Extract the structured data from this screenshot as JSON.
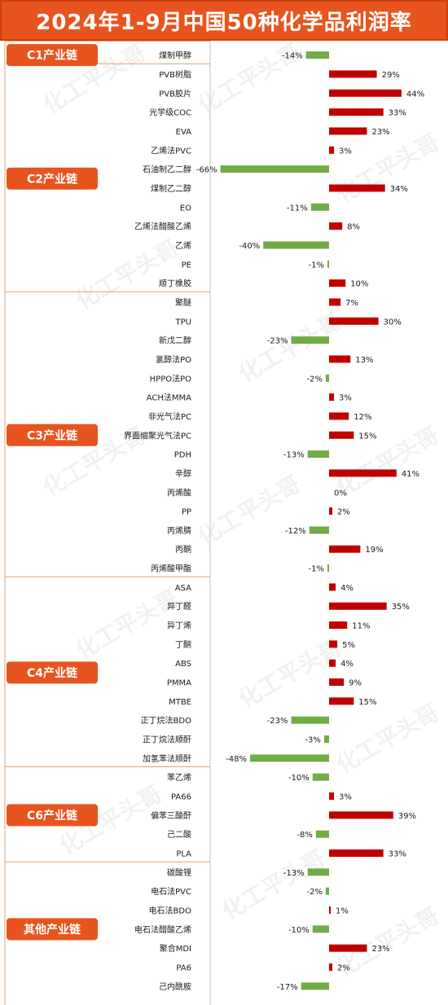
{
  "title": "2024年1-9月中国50种化学品利润率",
  "colors": {
    "header": "#e8541e",
    "positive": "#c00000",
    "negative": "#70ad47",
    "group": "#e8541e",
    "separator": "#e8a070"
  },
  "watermark": "化工平头哥",
  "chart_data": {
    "type": "bar",
    "orientation": "horizontal",
    "title": "2024年1-9月中国50种化学品利润率",
    "value_unit": "%",
    "groups": [
      {
        "name": "C1产业链",
        "items": [
          {
            "label": "煤制甲醇",
            "value": -14
          }
        ]
      },
      {
        "name": "C2产业链",
        "items": [
          {
            "label": "PVB树脂",
            "value": 29
          },
          {
            "label": "PVB胶片",
            "value": 44
          },
          {
            "label": "光学级COC",
            "value": 33
          },
          {
            "label": "EVA",
            "value": 23
          },
          {
            "label": "乙烯法PVC",
            "value": 3
          },
          {
            "label": "石油制乙二醇",
            "value": -66
          },
          {
            "label": "煤制乙二醇",
            "value": 34
          },
          {
            "label": "EO",
            "value": -11
          },
          {
            "label": "乙烯法醋酸乙烯",
            "value": 8
          },
          {
            "label": "乙烯",
            "value": -40
          },
          {
            "label": "PE",
            "value": -1
          },
          {
            "label": "顺丁橡胶",
            "value": 10
          }
        ]
      },
      {
        "name": "C3产业链",
        "items": [
          {
            "label": "聚醚",
            "value": 7
          },
          {
            "label": "TPU",
            "value": 30
          },
          {
            "label": "新戊二醇",
            "value": -23
          },
          {
            "label": "氯醇法PO",
            "value": 13
          },
          {
            "label": "HPPO法PO",
            "value": -2
          },
          {
            "label": "ACH法MMA",
            "value": 3
          },
          {
            "label": "非光气法PC",
            "value": 12
          },
          {
            "label": "界面缩聚光气法PC",
            "value": 15
          },
          {
            "label": "PDH",
            "value": -13
          },
          {
            "label": "辛醇",
            "value": 41
          },
          {
            "label": "丙烯酸",
            "value": 0
          },
          {
            "label": "PP",
            "value": 2
          },
          {
            "label": "丙烯腈",
            "value": -12
          },
          {
            "label": "丙酮",
            "value": 19
          },
          {
            "label": "丙烯酸甲酯",
            "value": -1
          }
        ]
      },
      {
        "name": "C4产业链",
        "items": [
          {
            "label": "ASA",
            "value": 4
          },
          {
            "label": "异丁醛",
            "value": 35
          },
          {
            "label": "异丁烯",
            "value": 11
          },
          {
            "label": "丁酮",
            "value": 5
          },
          {
            "label": "ABS",
            "value": 4
          },
          {
            "label": "PMMA",
            "value": 9
          },
          {
            "label": "MTBE",
            "value": 15
          },
          {
            "label": "正丁烷法BDO",
            "value": -23
          },
          {
            "label": "正丁烷法顺酐",
            "value": -3
          },
          {
            "label": "加氢苯法顺酐",
            "value": -48
          }
        ]
      },
      {
        "name": "C6产业链",
        "items": [
          {
            "label": "苯乙烯",
            "value": -10
          },
          {
            "label": "PA66",
            "value": 3
          },
          {
            "label": "偏苯三酸酐",
            "value": 39
          },
          {
            "label": "己二酸",
            "value": -8
          },
          {
            "label": "PLA",
            "value": 33
          }
        ]
      },
      {
        "name": "其他产业链",
        "items": [
          {
            "label": "碳酸锂",
            "value": -13
          },
          {
            "label": "电石法PVC",
            "value": -2
          },
          {
            "label": "电石法BDO",
            "value": 1
          },
          {
            "label": "电石法醋酸乙烯",
            "value": -10
          },
          {
            "label": "聚合MDI",
            "value": 23
          },
          {
            "label": "PA6",
            "value": 2
          },
          {
            "label": "己内酰胺",
            "value": -17
          }
        ]
      }
    ]
  }
}
